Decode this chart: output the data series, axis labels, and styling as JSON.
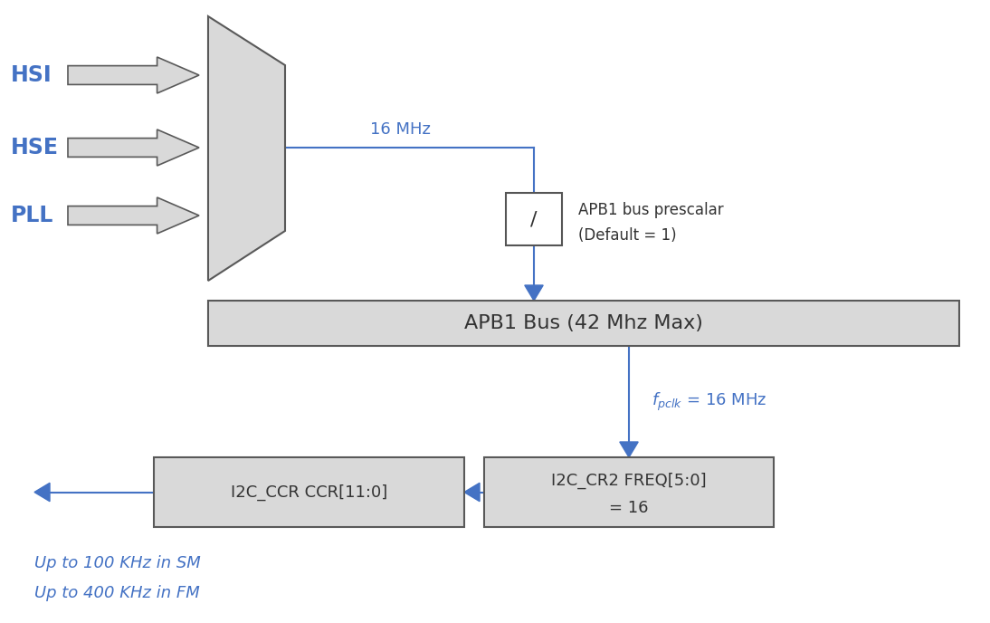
{
  "bg_color": "#ffffff",
  "arrow_color": "#4472c4",
  "box_fill": "#d9d9d9",
  "box_edge": "#595959",
  "white_box_fill": "#ffffff",
  "mux_fill": "#d9d9d9",
  "mux_edge": "#595959",
  "blue_text_color": "#4472c4",
  "dark_text_color": "#333333",
  "hsi_label": "HSI",
  "hse_label": "HSE",
  "pll_label": "PLL",
  "freq_label": "16 MHz",
  "prescalar_label": "/",
  "prescalar_note_line1": "APB1 bus prescalar",
  "prescalar_note_line2": "(Default = 1)",
  "apb1_label": "APB1 Bus (42 Mhz Max)",
  "cr2_line1": "I2C_CR2 FREQ[5:0]",
  "cr2_line2": "= 16",
  "ccr_label": "I2C_CCR CCR[11:0]",
  "bottom_line1": "Up to 100 KHz in SM",
  "bottom_line2": "Up to 400 KHz in FM",
  "fig_w": 10.94,
  "fig_h": 6.88,
  "dpi": 100
}
